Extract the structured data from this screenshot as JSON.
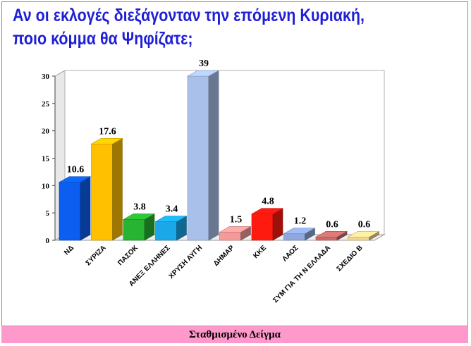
{
  "title": "Αν οι εκλογές διεξάγονταν την επόμενη Κυριακή, ποιο κόμμα θα Ψηφίζατε;",
  "footer": "Σταθμισμένο Δείγμα",
  "chart_data": {
    "type": "bar",
    "title": "Αν οι εκλογές διεξάγονταν την επόμενη Κυριακή, ποιο κόμμα θα Ψηφίζατε;",
    "xlabel": "",
    "ylabel": "",
    "ylim": [
      0,
      30
    ],
    "yticks": [
      0,
      5,
      10,
      15,
      20,
      25,
      30
    ],
    "grid": false,
    "legend": "none",
    "categories": [
      "ΝΔ",
      "ΣΥΡΙΖΑ",
      "ΠΑΣΟΚ",
      "ΑΝΕΞ ΕΛΛΗΝΕΣ",
      "ΧΡΥΣΗ ΑΥΓΗ",
      "ΔΗΜΑΡ",
      "ΚΚΕ",
      "ΛΑΟΣ",
      "ΣΥΜ ΓΙΑ ΤΗ Ν ΕΛΛΑΔΑ",
      "ΣΧΕΔΙΟ Β"
    ],
    "values": [
      10.6,
      17.6,
      3.8,
      3.4,
      39,
      1.5,
      4.8,
      1.2,
      0.6,
      0.6
    ],
    "value_labels": [
      "10.6",
      "17.6",
      "3.8",
      "3.4",
      "39",
      "1.5",
      "4.8",
      "1.2",
      "0.6",
      "0.6"
    ],
    "colors": [
      "#0b5ef0",
      "#ffc000",
      "#27b432",
      "#1aa8e8",
      "#a9c0ea",
      "#f59a9a",
      "#ff1a10",
      "#8ea8dc",
      "#c86c6c",
      "#f0d890"
    ]
  }
}
